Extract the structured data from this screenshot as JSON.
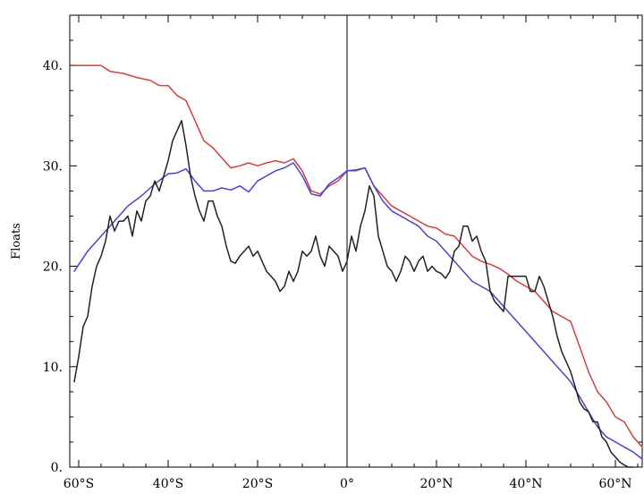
{
  "chart_data": {
    "type": "line",
    "title": "",
    "xlabel": "",
    "ylabel": "Floats",
    "xlim": [
      -62,
      66
    ],
    "ylim": [
      0,
      45
    ],
    "grid": false,
    "legend": "none",
    "x_ticks": [
      {
        "value": -60,
        "label": "60°S"
      },
      {
        "value": -40,
        "label": "40°S"
      },
      {
        "value": -20,
        "label": "20°S"
      },
      {
        "value": 0,
        "label": "0°"
      },
      {
        "value": 20,
        "label": "20°N"
      },
      {
        "value": 40,
        "label": "40°N"
      },
      {
        "value": 60,
        "label": "60°N"
      }
    ],
    "y_ticks": [
      {
        "value": 0,
        "label": "0."
      },
      {
        "value": 10,
        "label": "10."
      },
      {
        "value": 20,
        "label": "20."
      },
      {
        "value": 30,
        "label": "30."
      },
      {
        "value": 40,
        "label": "40."
      }
    ],
    "vertical_reference_line": 0,
    "series": [
      {
        "color": "#d04040",
        "x": [
          -61,
          -55,
          -53,
          -50,
          -47,
          -44,
          -42,
          -40,
          -38,
          -36,
          -34,
          -32,
          -30,
          -28,
          -26,
          -24,
          -22,
          -20,
          -18,
          -16,
          -14,
          -12,
          -10,
          -8,
          -6,
          -4,
          -2,
          0,
          2,
          4,
          6,
          8,
          10,
          12,
          14,
          16,
          18,
          20,
          22,
          24,
          26,
          28,
          30,
          32,
          34,
          36,
          38,
          40,
          42,
          44,
          46,
          48,
          50,
          52,
          54,
          56,
          58,
          60,
          62,
          64,
          66
        ],
        "values": [
          40,
          40,
          39.4,
          39.2,
          38.8,
          38.5,
          38,
          38,
          37,
          36.5,
          34.5,
          32.5,
          31.8,
          30.8,
          29.8,
          30,
          30.3,
          30,
          30.3,
          30.5,
          30.3,
          30.7,
          29.5,
          27.5,
          27.2,
          28,
          28.5,
          29.5,
          29.5,
          29.8,
          28,
          27,
          26,
          25.5,
          25,
          24.5,
          24,
          23.8,
          23.2,
          23,
          22,
          21,
          20.5,
          20.2,
          19.8,
          19.2,
          18.5,
          18,
          17.5,
          16.5,
          15.5,
          15,
          14.5,
          12,
          9.5,
          7.5,
          6.5,
          5,
          4.5,
          3,
          2
        ]
      },
      {
        "color": "#4444cc",
        "x": [
          -61,
          -58,
          -55,
          -52,
          -49,
          -46,
          -43,
          -40,
          -38,
          -36,
          -34,
          -32,
          -30,
          -28,
          -26,
          -24,
          -22,
          -20,
          -18,
          -16,
          -14,
          -12,
          -10,
          -8,
          -6,
          -4,
          -2,
          0,
          2,
          4,
          6,
          8,
          10,
          12,
          14,
          16,
          18,
          20,
          22,
          24,
          26,
          28,
          30,
          32,
          34,
          36,
          38,
          40,
          42,
          44,
          46,
          48,
          50,
          52,
          54,
          56,
          58,
          60,
          62,
          64,
          66
        ],
        "values": [
          19.5,
          21.5,
          23,
          24.5,
          26,
          27,
          28.2,
          29.2,
          29.3,
          29.7,
          28.5,
          27.5,
          27.5,
          27.8,
          27.6,
          28,
          27.4,
          28.5,
          29,
          29.5,
          29.8,
          30.3,
          29,
          27.2,
          27,
          28.2,
          28.8,
          29.5,
          29.6,
          29.8,
          28,
          26.5,
          25.5,
          25,
          24.5,
          24,
          23,
          22.5,
          21.5,
          20.5,
          19.5,
          18.5,
          18,
          17.5,
          16.5,
          15.5,
          14.5,
          13.5,
          12.5,
          11.5,
          10.5,
          9.5,
          8.5,
          7,
          5.5,
          4,
          3,
          2.5,
          2,
          1.5,
          0.8
        ]
      },
      {
        "color": "#222222",
        "x": [
          -61,
          -60,
          -59,
          -58,
          -57,
          -56,
          -55,
          -54,
          -53,
          -52,
          -51,
          -50,
          -49,
          -48,
          -47,
          -46,
          -45,
          -44,
          -43,
          -42,
          -41,
          -40,
          -39,
          -38,
          -37,
          -36,
          -35,
          -34,
          -33,
          -32,
          -31,
          -30,
          -29,
          -28,
          -27,
          -26,
          -25,
          -24,
          -23,
          -22,
          -21,
          -20,
          -19,
          -18,
          -17,
          -16,
          -15,
          -14,
          -13,
          -12,
          -11,
          -10,
          -9,
          -8,
          -7,
          -6,
          -5,
          -4,
          -3,
          -2,
          -1,
          0,
          1,
          2,
          3,
          4,
          5,
          6,
          7,
          8,
          9,
          10,
          11,
          12,
          13,
          14,
          15,
          16,
          17,
          18,
          19,
          20,
          21,
          22,
          23,
          24,
          25,
          26,
          27,
          28,
          29,
          30,
          31,
          32,
          33,
          34,
          35,
          36,
          37,
          38,
          39,
          40,
          41,
          42,
          43,
          44,
          45,
          46,
          47,
          48,
          49,
          50,
          51,
          52,
          53,
          54,
          55,
          56,
          57,
          58,
          59,
          60,
          61,
          62,
          63,
          64
        ],
        "values": [
          8.5,
          11,
          14,
          15,
          18,
          20,
          21,
          22.5,
          25,
          23.5,
          24.5,
          24.5,
          25,
          23,
          25.5,
          24.5,
          26.5,
          27,
          28.5,
          27.5,
          29,
          30.5,
          32.5,
          33.5,
          34.5,
          32,
          29,
          27,
          25.5,
          24.5,
          26.5,
          26.5,
          25,
          24,
          22,
          20.5,
          20.3,
          21,
          21.5,
          22,
          21,
          21.5,
          20.5,
          19.5,
          19,
          18.5,
          17.5,
          18,
          19.5,
          18.5,
          19.5,
          21.5,
          21,
          21.5,
          23,
          21,
          20,
          22,
          21.5,
          21,
          19.5,
          20.5,
          23,
          21.5,
          24,
          25.5,
          28,
          27,
          23,
          21.5,
          20,
          19.5,
          18.5,
          19.5,
          21,
          20.5,
          19.5,
          20.5,
          21,
          19.5,
          20,
          19.5,
          19.3,
          18.8,
          19.5,
          21.5,
          22,
          24,
          24,
          22.5,
          23,
          21.5,
          20.5,
          17.5,
          16.5,
          16,
          15.5,
          19,
          19,
          19,
          19,
          19,
          17.5,
          17.5,
          19,
          18,
          16.5,
          15,
          13,
          11.5,
          10.5,
          9.5,
          8,
          6.5,
          5.8,
          5.5,
          4.5,
          4.5,
          3,
          2.5,
          1.5,
          1,
          0.5,
          0.2,
          0,
          0
        ]
      }
    ]
  }
}
